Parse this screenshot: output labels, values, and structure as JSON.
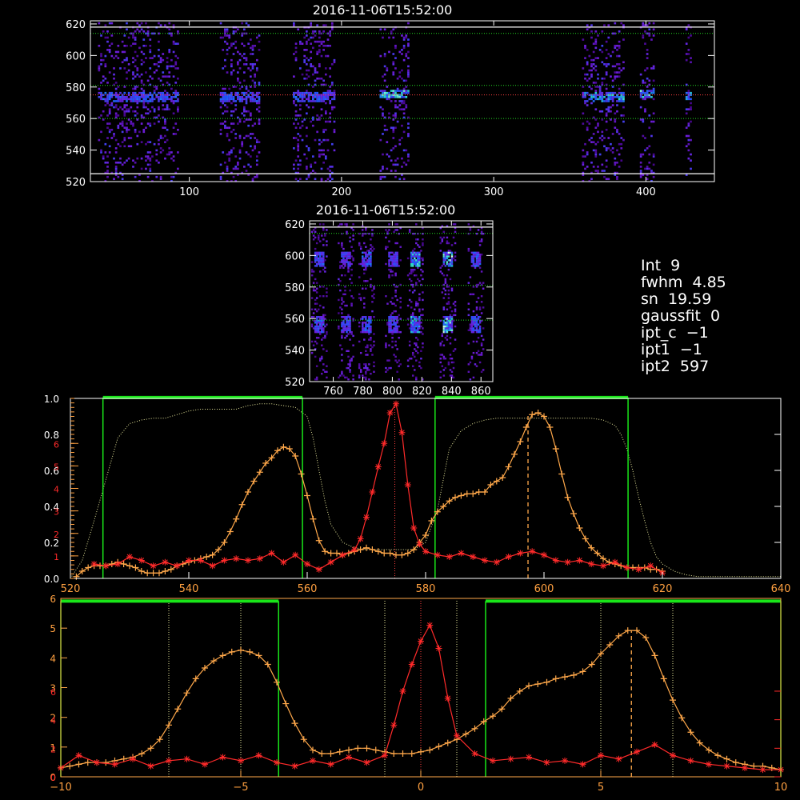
{
  "colors": {
    "background": "#000000",
    "axis": "#ffffff",
    "orange": "#ffa84a",
    "red": "#ff2a2a",
    "green": "#19e619",
    "dotted_green": "#22dd22",
    "dotted_red": "#ff4040",
    "pale_yellow": "#e6e69a",
    "tick_orange": "#ffa040"
  },
  "stats": [
    {
      "label": "Int",
      "value": "9"
    },
    {
      "label": "fwhm",
      "value": "4.85"
    },
    {
      "label": "sn",
      "value": "19.59"
    },
    {
      "label": "gaussfit",
      "value": "0"
    },
    {
      "label": "ipt_c",
      "value": "−1"
    },
    {
      "label": "ipt1",
      "value": "−1"
    },
    {
      "label": "ipt2",
      "value": "597"
    }
  ],
  "chart_data": [
    {
      "type": "heatmap",
      "title": "2016-11-06T15:52:00",
      "xlim": [
        35,
        445
      ],
      "ylim": [
        520,
        622
      ],
      "x_ticks": [
        "100",
        "200",
        "300",
        "400"
      ],
      "y_ticks": [
        "520",
        "540",
        "560",
        "580",
        "600",
        "620"
      ],
      "x_tick_values": [
        100,
        200,
        300,
        400
      ],
      "y_tick_values": [
        520,
        540,
        560,
        580,
        600,
        620
      ],
      "hlines_white": [
        525,
        618
      ],
      "hlines_green_dotted": [
        560,
        581,
        614
      ],
      "hlines_red_dotted": [
        575
      ],
      "bands": [
        {
          "x0": 40,
          "x1": 92,
          "core_y": 574,
          "strength": 0.5
        },
        {
          "x0": 120,
          "x1": 146,
          "core_y": 574,
          "strength": 0.5
        },
        {
          "x0": 168,
          "x1": 195,
          "core_y": 574,
          "strength": 0.5
        },
        {
          "x0": 225,
          "x1": 244,
          "core_y": 576,
          "strength": 0.9
        },
        {
          "x0": 358,
          "x1": 385,
          "core_y": 574,
          "strength": 0.8
        },
        {
          "x0": 396,
          "x1": 405,
          "core_y": 576,
          "strength": 1.0
        },
        {
          "x0": 426,
          "x1": 430,
          "core_y": 575,
          "strength": 0.7
        }
      ]
    },
    {
      "type": "heatmap",
      "title": "2016-11-06T15:52:00",
      "xlim": [
        744,
        868
      ],
      "ylim": [
        520,
        622
      ],
      "x_ticks": [
        "760",
        "780",
        "800",
        "820",
        "840",
        "860"
      ],
      "y_ticks": [
        "520",
        "540",
        "560",
        "580",
        "600",
        "620"
      ],
      "x_tick_values": [
        760,
        780,
        800,
        820,
        840,
        860
      ],
      "y_tick_values": [
        520,
        540,
        560,
        580,
        600,
        620
      ],
      "hlines_green_dotted": [
        559,
        581,
        614
      ],
      "hlines_white": [
        618
      ],
      "columns": [
        {
          "x": 750,
          "strength": 0.5
        },
        {
          "x": 768,
          "strength": 0.4
        },
        {
          "x": 782,
          "strength": 0.5
        },
        {
          "x": 800,
          "strength": 0.4
        },
        {
          "x": 815,
          "strength": 0.8
        },
        {
          "x": 837,
          "strength": 1.0
        },
        {
          "x": 856,
          "strength": 0.5
        }
      ]
    },
    {
      "type": "line",
      "xlim": [
        520,
        640
      ],
      "ylim": [
        0,
        1.0
      ],
      "x_ticks": [
        "520",
        "540",
        "560",
        "580",
        "600",
        "620",
        "640"
      ],
      "x_tick_values": [
        520,
        540,
        560,
        580,
        600,
        620,
        640
      ],
      "y_ticks": [
        "0.0",
        "0.2",
        "0.4",
        "0.6",
        "0.8",
        "1.0"
      ],
      "y_tick_values": [
        0,
        0.2,
        0.4,
        0.6,
        0.8,
        1.0
      ],
      "right_ticks_orange": [
        "1",
        "2",
        "3",
        "4",
        "5",
        "6"
      ],
      "right_ticks_orange_values": [
        0.125,
        0.25,
        0.375,
        0.5,
        0.625,
        0.75
      ],
      "green_windows": [
        [
          525.5,
          559.2
        ],
        [
          581.6,
          614.2
        ]
      ],
      "green_top": 1.005,
      "vline_dashed_orange": 597.3,
      "vline_dotted_red": 574.8,
      "series_orange": {
        "x": [
          521,
          522,
          523,
          524,
          525,
          526,
          527,
          528,
          529,
          530,
          531,
          532,
          533,
          534,
          535,
          536,
          537,
          538,
          539,
          540,
          541,
          542,
          543,
          544,
          545,
          546,
          547,
          548,
          549,
          550,
          551,
          552,
          553,
          554,
          555,
          556,
          557,
          558,
          559,
          560,
          561,
          562,
          563,
          564,
          565,
          566,
          567,
          568,
          569,
          570,
          571,
          572,
          573,
          574,
          575,
          576,
          577,
          578,
          579,
          580,
          581,
          582,
          583,
          584,
          585,
          586,
          587,
          588,
          589,
          590,
          591,
          592,
          593,
          594,
          595,
          596,
          597,
          598,
          599,
          600,
          601,
          602,
          603,
          604,
          605,
          606,
          607,
          608,
          609,
          610,
          611,
          612,
          613,
          614,
          615,
          616,
          617,
          618,
          619,
          620
        ],
        "y": [
          0.01,
          0.04,
          0.06,
          0.07,
          0.07,
          0.07,
          0.08,
          0.09,
          0.08,
          0.07,
          0.06,
          0.04,
          0.03,
          0.03,
          0.03,
          0.04,
          0.05,
          0.07,
          0.08,
          0.09,
          0.1,
          0.11,
          0.12,
          0.13,
          0.16,
          0.2,
          0.26,
          0.33,
          0.41,
          0.48,
          0.54,
          0.59,
          0.64,
          0.67,
          0.71,
          0.73,
          0.72,
          0.68,
          0.58,
          0.46,
          0.33,
          0.21,
          0.15,
          0.14,
          0.14,
          0.13,
          0.14,
          0.15,
          0.16,
          0.17,
          0.16,
          0.15,
          0.14,
          0.14,
          0.13,
          0.13,
          0.14,
          0.16,
          0.2,
          0.24,
          0.32,
          0.37,
          0.4,
          0.43,
          0.45,
          0.46,
          0.47,
          0.47,
          0.48,
          0.48,
          0.52,
          0.54,
          0.56,
          0.62,
          0.69,
          0.76,
          0.84,
          0.91,
          0.92,
          0.9,
          0.84,
          0.72,
          0.58,
          0.45,
          0.36,
          0.28,
          0.22,
          0.17,
          0.14,
          0.11,
          0.09,
          0.08,
          0.07,
          0.06,
          0.06,
          0.06,
          0.06,
          0.05,
          0.05,
          0.04
        ]
      },
      "series_red": {
        "x": [
          524,
          526,
          528,
          530,
          532,
          534,
          536,
          538,
          540,
          542,
          544,
          546,
          548,
          550,
          552,
          554,
          556,
          558,
          560,
          562,
          564,
          566,
          568,
          569,
          570,
          571,
          572,
          573,
          574,
          575,
          576,
          577,
          578,
          579,
          580,
          582,
          584,
          586,
          588,
          590,
          592,
          594,
          596,
          598,
          600,
          602,
          604,
          606,
          608,
          610,
          612,
          614,
          616,
          618,
          620
        ],
        "y": [
          0.08,
          0.07,
          0.08,
          0.12,
          0.1,
          0.07,
          0.09,
          0.07,
          0.1,
          0.1,
          0.07,
          0.1,
          0.11,
          0.1,
          0.11,
          0.14,
          0.09,
          0.13,
          0.08,
          0.05,
          0.09,
          0.13,
          0.16,
          0.22,
          0.34,
          0.48,
          0.62,
          0.75,
          0.92,
          0.97,
          0.81,
          0.52,
          0.28,
          0.19,
          0.15,
          0.13,
          0.12,
          0.14,
          0.12,
          0.1,
          0.09,
          0.12,
          0.14,
          0.15,
          0.13,
          0.1,
          0.09,
          0.1,
          0.08,
          0.07,
          0.09,
          0.06,
          0.05,
          0.07,
          0.03
        ]
      },
      "series_dotted": {
        "x": [
          520,
          522,
          524,
          526,
          528,
          530,
          532,
          534,
          536,
          538,
          540,
          542,
          544,
          546,
          548,
          550,
          552,
          554,
          556,
          558,
          560,
          561,
          562,
          563,
          564,
          566,
          568,
          570,
          572,
          574,
          576,
          578,
          580,
          582,
          584,
          586,
          588,
          590,
          592,
          594,
          596,
          598,
          600,
          602,
          604,
          606,
          608,
          610,
          612,
          613,
          614,
          615,
          616,
          617,
          618,
          619,
          620,
          622,
          624,
          626,
          628,
          630,
          632,
          634,
          636,
          638,
          640
        ],
        "y": [
          0.0,
          0.1,
          0.32,
          0.55,
          0.78,
          0.86,
          0.88,
          0.89,
          0.89,
          0.91,
          0.93,
          0.94,
          0.94,
          0.94,
          0.94,
          0.96,
          0.97,
          0.97,
          0.96,
          0.95,
          0.9,
          0.78,
          0.6,
          0.43,
          0.3,
          0.2,
          0.17,
          0.16,
          0.16,
          0.16,
          0.16,
          0.16,
          0.2,
          0.38,
          0.72,
          0.82,
          0.86,
          0.88,
          0.89,
          0.89,
          0.89,
          0.89,
          0.89,
          0.89,
          0.89,
          0.89,
          0.89,
          0.88,
          0.85,
          0.8,
          0.72,
          0.6,
          0.45,
          0.32,
          0.2,
          0.12,
          0.08,
          0.04,
          0.02,
          0.01,
          0.01,
          0.01,
          0.01,
          0.01,
          0.01,
          0.01,
          0.01
        ]
      }
    },
    {
      "type": "line",
      "xlim": [
        -10,
        10
      ],
      "ylim": [
        0,
        1.0
      ],
      "x_ticks": [
        "−10",
        "−5",
        "0",
        "5",
        "10"
      ],
      "x_tick_values": [
        -10,
        -5,
        0,
        5,
        10
      ],
      "y_ticks": [
        "0",
        "1",
        "2",
        "3",
        "4",
        "5",
        "6"
      ],
      "y_tick_values": [
        0,
        0.1667,
        0.3333,
        0.5,
        0.6667,
        0.8333,
        1.0
      ],
      "red_ticks": [
        "0",
        "2",
        "4",
        "6"
      ],
      "red_tick_values": [
        0,
        0.16,
        0.32,
        0.48
      ],
      "green_windows": [
        [
          -10,
          -3.95
        ],
        [
          1.8,
          10
        ]
      ],
      "green_top": 0.985,
      "vline_dashed_orange": 5.85,
      "vlines_dotted": [
        -7,
        -5,
        -1,
        0,
        1,
        5,
        7
      ],
      "series_orange": {
        "x": [
          -10,
          -9.75,
          -9.5,
          -9.25,
          -9,
          -8.75,
          -8.5,
          -8.25,
          -8,
          -7.75,
          -7.5,
          -7.25,
          -7,
          -6.75,
          -6.5,
          -6.25,
          -6,
          -5.75,
          -5.5,
          -5.25,
          -5,
          -4.75,
          -4.5,
          -4.25,
          -4,
          -3.75,
          -3.5,
          -3.25,
          -3,
          -2.75,
          -2.5,
          -2.25,
          -2,
          -1.75,
          -1.5,
          -1.25,
          -1,
          -0.75,
          -0.5,
          -0.25,
          0,
          0.25,
          0.5,
          0.75,
          1,
          1.25,
          1.5,
          1.75,
          2,
          2.25,
          2.5,
          2.75,
          3,
          3.25,
          3.5,
          3.75,
          4,
          4.25,
          4.5,
          4.75,
          5,
          5.25,
          5.5,
          5.75,
          6,
          6.25,
          6.5,
          6.75,
          7,
          7.25,
          7.5,
          7.75,
          8,
          8.25,
          8.5,
          8.75,
          9,
          9.25,
          9.5,
          9.75,
          10
        ],
        "y": [
          0.05,
          0.06,
          0.07,
          0.08,
          0.08,
          0.08,
          0.09,
          0.1,
          0.11,
          0.13,
          0.16,
          0.21,
          0.29,
          0.38,
          0.47,
          0.55,
          0.61,
          0.65,
          0.68,
          0.7,
          0.71,
          0.7,
          0.68,
          0.63,
          0.53,
          0.41,
          0.3,
          0.21,
          0.15,
          0.13,
          0.13,
          0.14,
          0.15,
          0.16,
          0.16,
          0.15,
          0.14,
          0.13,
          0.13,
          0.13,
          0.14,
          0.15,
          0.17,
          0.19,
          0.21,
          0.24,
          0.27,
          0.31,
          0.34,
          0.38,
          0.44,
          0.48,
          0.51,
          0.52,
          0.53,
          0.55,
          0.56,
          0.57,
          0.59,
          0.63,
          0.69,
          0.74,
          0.79,
          0.82,
          0.82,
          0.78,
          0.68,
          0.55,
          0.43,
          0.33,
          0.25,
          0.19,
          0.15,
          0.12,
          0.1,
          0.08,
          0.07,
          0.06,
          0.06,
          0.05,
          0.04
        ]
      },
      "series_red": {
        "x": [
          -10,
          -9.5,
          -9,
          -8.5,
          -8,
          -7.5,
          -7,
          -6.5,
          -6,
          -5.5,
          -5,
          -4.5,
          -4,
          -3.5,
          -3,
          -2.5,
          -2,
          -1.5,
          -1,
          -0.75,
          -0.5,
          -0.25,
          0,
          0.25,
          0.5,
          0.75,
          1,
          1.5,
          2,
          2.5,
          3,
          3.5,
          4,
          4.5,
          5,
          5.5,
          6,
          6.5,
          7,
          7.5,
          8,
          8.5,
          9,
          9.5,
          10
        ],
        "y": [
          0.05,
          0.12,
          0.08,
          0.07,
          0.1,
          0.06,
          0.09,
          0.1,
          0.07,
          0.11,
          0.09,
          0.12,
          0.08,
          0.06,
          0.09,
          0.07,
          0.11,
          0.08,
          0.12,
          0.29,
          0.48,
          0.63,
          0.76,
          0.85,
          0.72,
          0.44,
          0.23,
          0.13,
          0.09,
          0.1,
          0.11,
          0.08,
          0.09,
          0.07,
          0.12,
          0.1,
          0.14,
          0.18,
          0.12,
          0.09,
          0.07,
          0.06,
          0.05,
          0.04,
          0.04
        ]
      }
    }
  ]
}
